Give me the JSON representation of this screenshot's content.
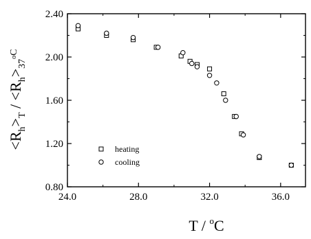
{
  "chart_data": {
    "type": "scatter",
    "xlabel": {
      "main": "T / ",
      "sup": "o",
      "unit": "C"
    },
    "ylabel": {
      "num": "<R",
      "num_sub": "h",
      "num_end": ">",
      "num_T": "T",
      "slash": " / ",
      "den": "<R",
      "den_sub": "h",
      "den_end": ">",
      "den_T": "37",
      "den_sup": "o",
      "den_unit": "C"
    },
    "xlim": [
      24.0,
      37.4
    ],
    "ylim": [
      0.8,
      2.4
    ],
    "x_ticks": [
      24.0,
      28.0,
      32.0,
      36.0
    ],
    "x_tick_labels": [
      "24.0",
      "28.0",
      "32.0",
      "36.0"
    ],
    "y_ticks": [
      0.8,
      1.2,
      1.6,
      2.0,
      2.4
    ],
    "y_tick_labels": [
      "0.80",
      "1.20",
      "1.60",
      "2.00",
      "2.40"
    ],
    "grid": false,
    "legend_position": "lower-left",
    "series": [
      {
        "name": "heating",
        "marker": "square",
        "points": [
          [
            24.6,
            2.26
          ],
          [
            26.2,
            2.2
          ],
          [
            27.7,
            2.16
          ],
          [
            29.0,
            2.09
          ],
          [
            30.4,
            2.01
          ],
          [
            30.9,
            1.96
          ],
          [
            31.3,
            1.93
          ],
          [
            32.0,
            1.89
          ],
          [
            32.8,
            1.66
          ],
          [
            33.4,
            1.45
          ],
          [
            33.8,
            1.29
          ],
          [
            34.8,
            1.07
          ],
          [
            36.6,
            1.0
          ]
        ]
      },
      {
        "name": "cooling",
        "marker": "circle",
        "points": [
          [
            24.6,
            2.29
          ],
          [
            26.2,
            2.22
          ],
          [
            27.7,
            2.18
          ],
          [
            29.1,
            2.09
          ],
          [
            30.5,
            2.04
          ],
          [
            31.0,
            1.94
          ],
          [
            31.3,
            1.91
          ],
          [
            32.0,
            1.83
          ],
          [
            32.4,
            1.76
          ],
          [
            32.9,
            1.6
          ],
          [
            33.5,
            1.45
          ],
          [
            33.9,
            1.28
          ],
          [
            34.8,
            1.08
          ],
          [
            36.6,
            1.0
          ]
        ]
      }
    ]
  }
}
